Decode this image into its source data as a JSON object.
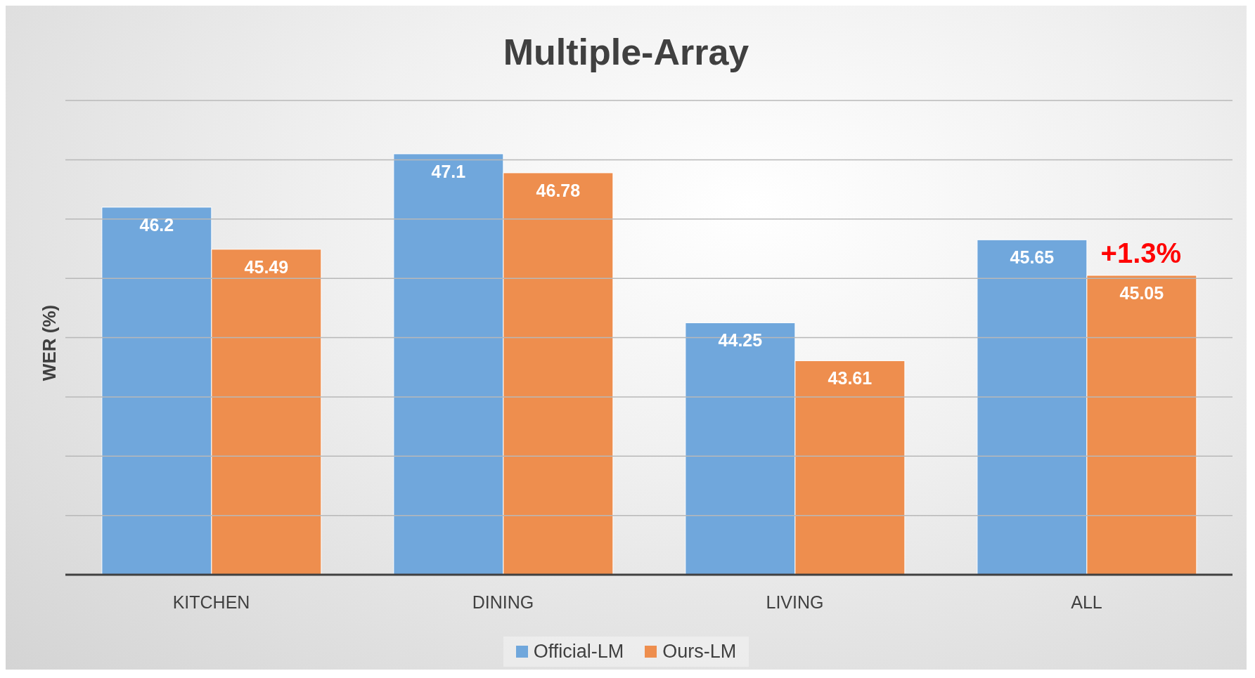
{
  "chart_data": {
    "type": "bar",
    "title": "Multiple-Array",
    "ylabel": "WER (%)",
    "categories": [
      "KITCHEN",
      "DINING",
      "LIVING",
      "ALL"
    ],
    "series": [
      {
        "name": "Official-LM",
        "color": "#70a7dc",
        "values": [
          46.2,
          47.1,
          44.25,
          45.65
        ]
      },
      {
        "name": "Ours-LM",
        "color": "#ee8e4e",
        "values": [
          45.49,
          46.78,
          43.61,
          45.05
        ]
      }
    ],
    "ylim": [
      40,
      48
    ],
    "yticks": [
      {
        "value": 40,
        "label": null
      },
      {
        "value": 41,
        "label": null
      },
      {
        "value": 42,
        "label": null
      },
      {
        "value": 43,
        "label": null
      },
      {
        "value": 44,
        "label": null
      },
      {
        "value": 45,
        "label": null
      },
      {
        "value": 46,
        "label": null
      },
      {
        "value": 47,
        "label": null
      },
      {
        "value": 48,
        "label": null
      }
    ],
    "grid": "y",
    "tick_labels": "x",
    "data_labels": true,
    "legend": "bottom",
    "annotations": [
      {
        "text": "+1.3%",
        "x": "ALL",
        "y": 45.05
      }
    ]
  }
}
